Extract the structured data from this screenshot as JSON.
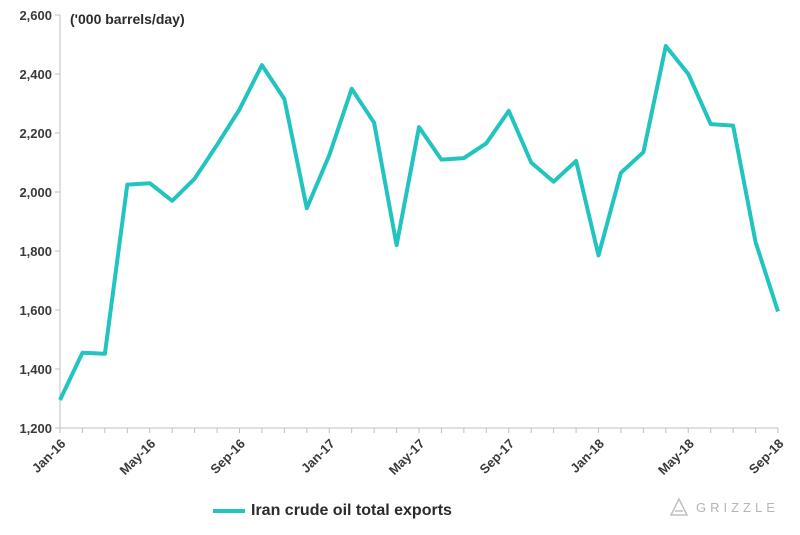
{
  "chart_data": {
    "type": "line",
    "unit_label": "('000 barrels/day)",
    "x": [
      "Jan-16",
      "Feb-16",
      "Mar-16",
      "Apr-16",
      "May-16",
      "Jun-16",
      "Jul-16",
      "Aug-16",
      "Sep-16",
      "Oct-16",
      "Nov-16",
      "Dec-16",
      "Jan-17",
      "Feb-17",
      "Mar-17",
      "Apr-17",
      "May-17",
      "Jun-17",
      "Jul-17",
      "Aug-17",
      "Sep-17",
      "Oct-17",
      "Nov-17",
      "Dec-17",
      "Jan-18",
      "Feb-18",
      "Mar-18",
      "Apr-18",
      "May-18",
      "Jun-18",
      "Jul-18",
      "Aug-18",
      "Sep-18"
    ],
    "x_tick_labels": [
      "Jan-16",
      "May-16",
      "Sep-16",
      "Jan-17",
      "May-17",
      "Sep-17",
      "Jan-18",
      "May-18",
      "Sep-18"
    ],
    "series": [
      {
        "name": "Iran crude oil total exports",
        "color": "#22c4c0",
        "values": [
          1295,
          1455,
          1452,
          2025,
          2030,
          1970,
          2045,
          2160,
          2280,
          2430,
          2315,
          1945,
          2125,
          2350,
          2235,
          1820,
          2220,
          2110,
          2115,
          2165,
          2275,
          2100,
          2035,
          2105,
          1785,
          2065,
          2135,
          2495,
          2400,
          2230,
          2225,
          1830,
          1595
        ]
      }
    ],
    "ylim": [
      1200,
      2600
    ],
    "y_ticks": [
      "1,200",
      "1,400",
      "1,600",
      "1,800",
      "2,000",
      "2,200",
      "2,400",
      "2,600"
    ],
    "grid": false,
    "legend_position": "bottom"
  },
  "watermark": "GRIZZLE"
}
